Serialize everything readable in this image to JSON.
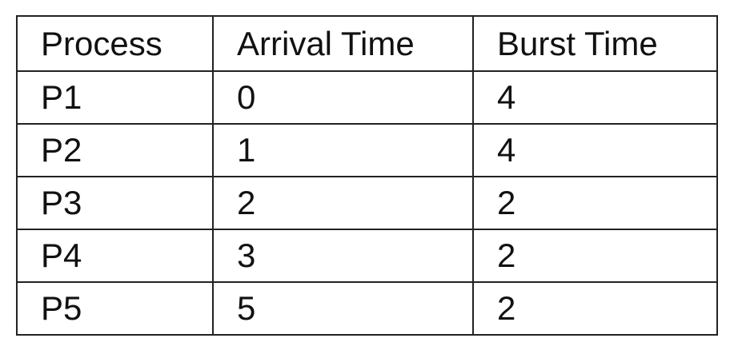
{
  "table": {
    "headers": [
      "Process",
      "Arrival Time",
      "Burst Time"
    ],
    "rows": [
      [
        "P1",
        "0",
        "4"
      ],
      [
        "P2",
        "1",
        "4"
      ],
      [
        "P3",
        "2",
        "2"
      ],
      [
        "P4",
        "3",
        "2"
      ],
      [
        "P5",
        "5",
        "2"
      ]
    ]
  }
}
